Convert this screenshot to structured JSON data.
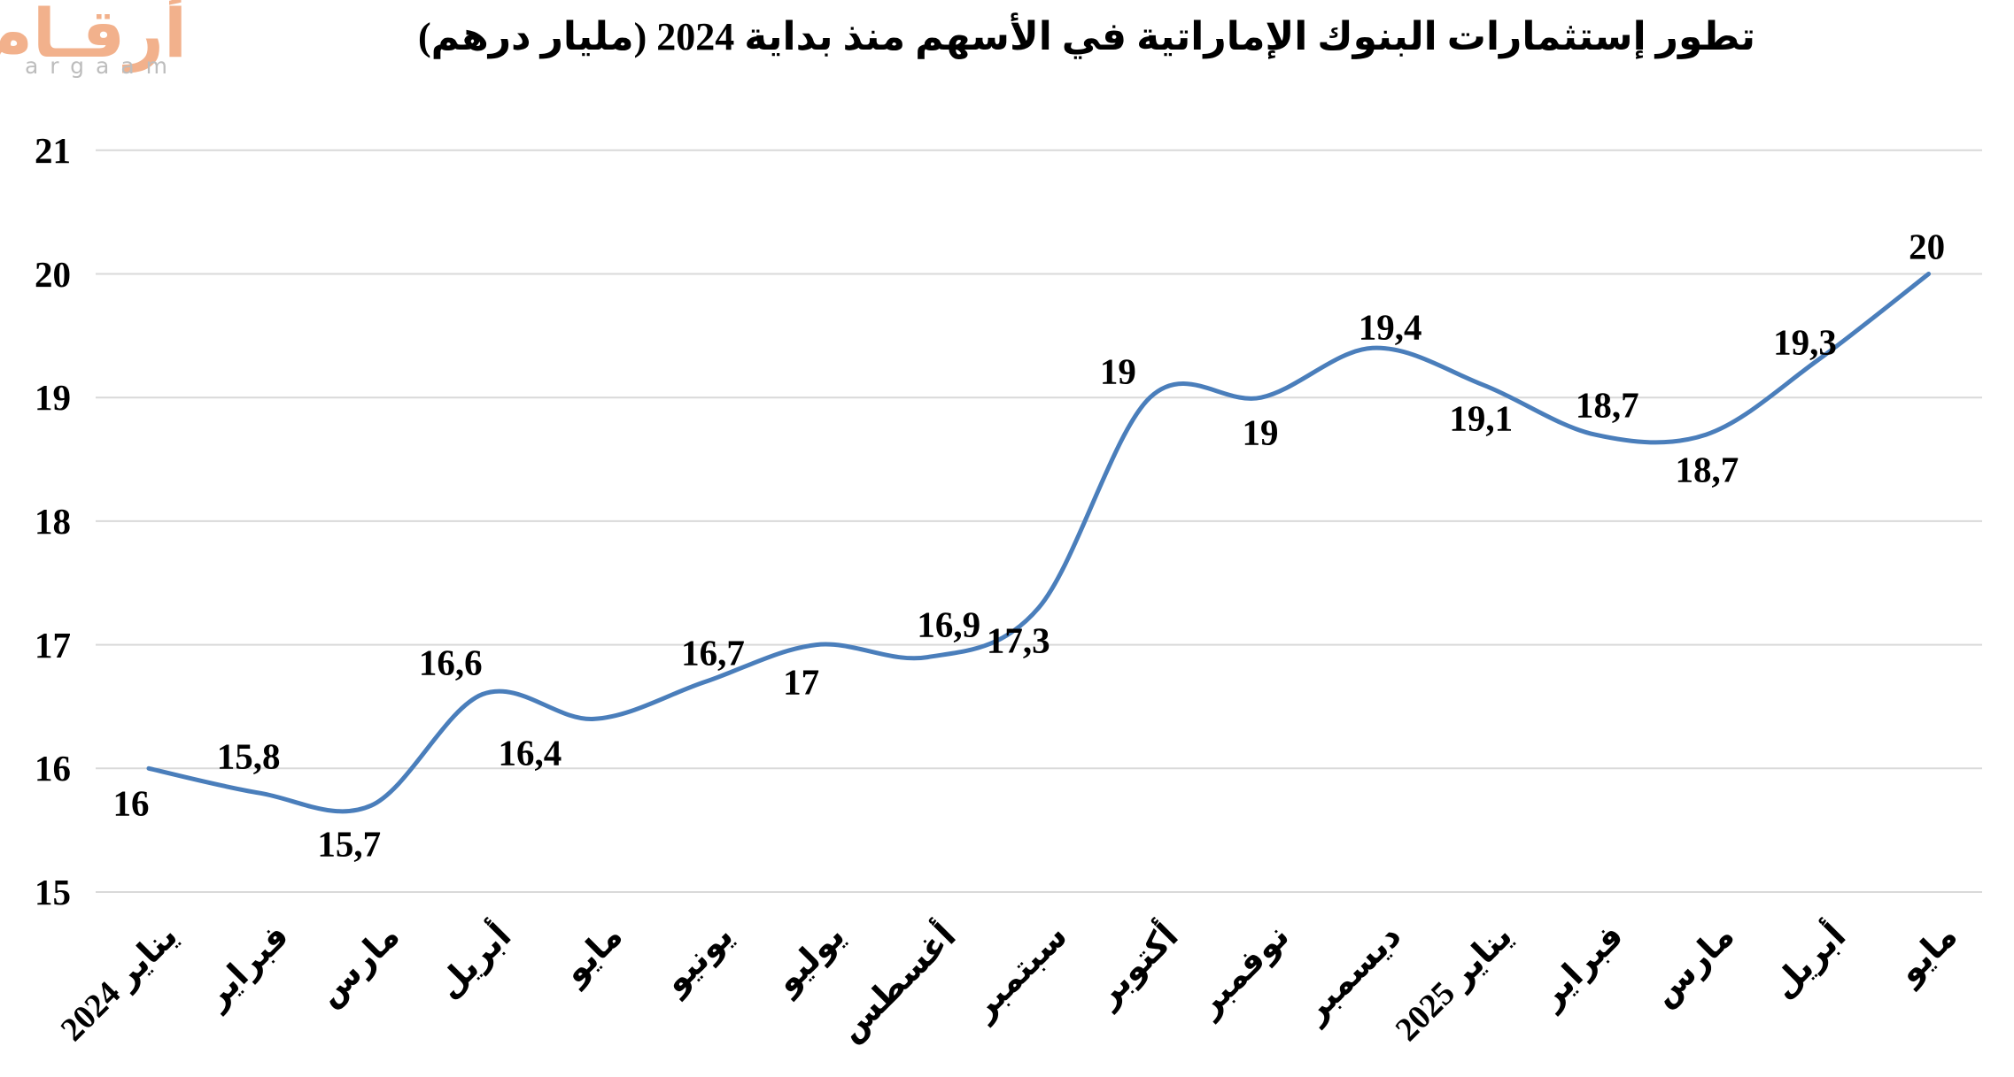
{
  "logo": {
    "arabic": "أرقـام",
    "latin": "argaam",
    "arabic_color": "#F2B18C",
    "latin_color": "#BDBDBD"
  },
  "title": "تطور إستثمارات البنوك الإماراتية في الأسهم منذ بداية 2024 (مليار درهم)",
  "chart_data": {
    "type": "line",
    "categories": [
      "يناير 2024",
      "فبراير",
      "مارس",
      "أبريل",
      "مايو",
      "يونيو",
      "يوليو",
      "أغسطس",
      "سبتمبر",
      "أكتوبر",
      "نوفمبر",
      "ديسمبر",
      "يناير 2025",
      "فبراير",
      "مارس",
      "أبريل",
      "مايو"
    ],
    "values": [
      16,
      15.8,
      15.7,
      16.6,
      16.4,
      16.7,
      17,
      16.9,
      17.3,
      19,
      19,
      19.4,
      19.1,
      18.7,
      18.7,
      19.3,
      20
    ],
    "point_labels": [
      "16",
      "15,8",
      "15,7",
      "16,6",
      "16,4",
      "16,7",
      "17",
      "16,9",
      "17,3",
      "19",
      "19",
      "19,4",
      "19,1",
      "18,7",
      "18,7",
      "19,3",
      "20"
    ],
    "ylim": [
      15,
      21
    ],
    "ytick_labels": [
      "21",
      "20",
      "19",
      "18",
      "17",
      "16",
      "15"
    ],
    "grid": true,
    "smooth": true,
    "legend": "none",
    "line_color": "#4A7EBB",
    "grid_color": "#D9D9D9",
    "label_color": "#000000"
  }
}
